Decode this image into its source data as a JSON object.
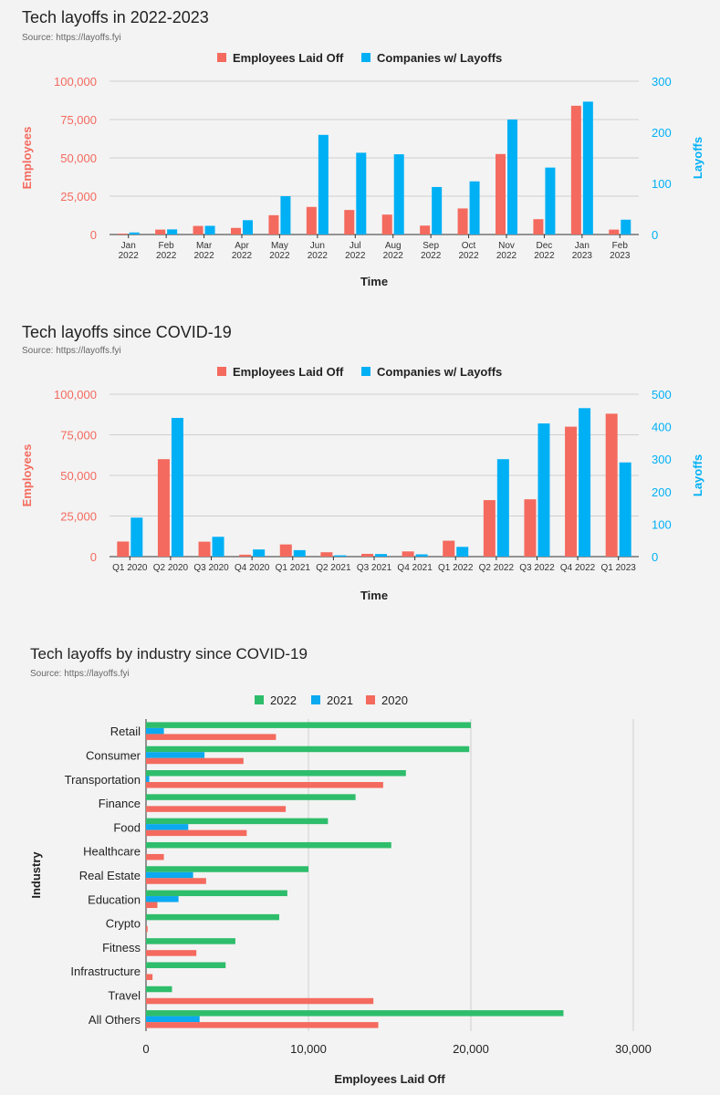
{
  "colors": {
    "laid_off": "#f46a5e",
    "companies": "#00b0f5",
    "y2022": "#2ebd6b",
    "y2021": "#0aa9f0",
    "y2020": "#f46a5e"
  },
  "chart_data": [
    {
      "type": "bar",
      "title": "Tech layoffs in 2022-2023",
      "source": "Source: https://layoffs.fyi",
      "categories": [
        [
          "Jan",
          "2022"
        ],
        [
          "Feb",
          "2022"
        ],
        [
          "Mar",
          "2022"
        ],
        [
          "Apr",
          "2022"
        ],
        [
          "May",
          "2022"
        ],
        [
          "Jun",
          "2022"
        ],
        [
          "Jul",
          "2022"
        ],
        [
          "Aug",
          "2022"
        ],
        [
          "Sep",
          "2022"
        ],
        [
          "Oct",
          "2022"
        ],
        [
          "Nov",
          "2022"
        ],
        [
          "Dec",
          "2022"
        ],
        [
          "Jan",
          "2023"
        ],
        [
          "Feb",
          "2023"
        ]
      ],
      "series": [
        {
          "name": "Employees Laid Off",
          "axis": "left",
          "values": [
            600,
            3200,
            5600,
            4300,
            12600,
            18000,
            16000,
            13000,
            5800,
            17000,
            52500,
            10000,
            84000,
            3200
          ]
        },
        {
          "name": "Companies w/ Layoffs",
          "axis": "right",
          "values": [
            4,
            10,
            17,
            28,
            75,
            195,
            160,
            157,
            93,
            104,
            225,
            131,
            260,
            29
          ]
        }
      ],
      "xlabel": "Time",
      "ylabel_left": "Employees",
      "ylabel_right": "Layoffs",
      "ylim_left": [
        0,
        100000
      ],
      "ylim_right": [
        0,
        300
      ],
      "yticks_left": [
        "0",
        "25,000",
        "50,000",
        "75,000",
        "100,000"
      ],
      "yticks_right": [
        "0",
        "100",
        "200",
        "300"
      ],
      "legend": "top"
    },
    {
      "type": "bar",
      "title": "Tech layoffs since COVID-19",
      "source": "Source: https://layoffs.fyi",
      "categories": [
        [
          "Q1 2020"
        ],
        [
          "Q2 2020"
        ],
        [
          "Q3 2020"
        ],
        [
          "Q4 2020"
        ],
        [
          "Q1 2021"
        ],
        [
          "Q2 2021"
        ],
        [
          "Q3 2021"
        ],
        [
          "Q4 2021"
        ],
        [
          "Q1 2022"
        ],
        [
          "Q2 2022"
        ],
        [
          "Q3 2022"
        ],
        [
          "Q4 2022"
        ],
        [
          "Q1 2023"
        ]
      ],
      "series": [
        {
          "name": "Employees Laid Off",
          "axis": "left",
          "values": [
            9300,
            60000,
            9200,
            1200,
            7500,
            2700,
            1700,
            3200,
            9800,
            34800,
            35300,
            80000,
            88000
          ]
        },
        {
          "name": "Companies w/ Layoffs",
          "axis": "right",
          "values": [
            120,
            427,
            61,
            22,
            20,
            4,
            8,
            7,
            30,
            300,
            410,
            457,
            290
          ]
        }
      ],
      "xlabel": "Time",
      "ylabel_left": "Employees",
      "ylabel_right": "Layoffs",
      "ylim_left": [
        0,
        100000
      ],
      "ylim_right": [
        0,
        500
      ],
      "yticks_left": [
        "0",
        "25,000",
        "50,000",
        "75,000",
        "100,000"
      ],
      "yticks_right": [
        "0",
        "100",
        "200",
        "300",
        "400",
        "500"
      ],
      "legend": "top"
    },
    {
      "type": "bar",
      "orientation": "horizontal",
      "title": "Tech layoffs by industry since COVID-19",
      "source": "Source: https://layoffs.fyi",
      "categories": [
        "Retail",
        "Consumer",
        "Transportation",
        "Finance",
        "Food",
        "Healthcare",
        "Real Estate",
        "Education",
        "Crypto",
        "Fitness",
        "Infrastructure",
        "Travel",
        "All Others"
      ],
      "series": [
        {
          "name": "2022",
          "values": [
            20000,
            19900,
            16000,
            12900,
            11200,
            15100,
            10000,
            8700,
            8200,
            5500,
            4900,
            1600,
            25700
          ]
        },
        {
          "name": "2021",
          "values": [
            1100,
            3600,
            200,
            0,
            2600,
            0,
            2900,
            2000,
            0,
            0,
            0,
            0,
            3300
          ]
        },
        {
          "name": "2020",
          "values": [
            8000,
            6000,
            14600,
            8600,
            6200,
            1100,
            3700,
            700,
            100,
            3100,
            400,
            14000,
            14300
          ]
        }
      ],
      "xlabel": "Employees Laid Off",
      "ylabel": "Industry",
      "xlim": [
        0,
        30000
      ],
      "xticks": [
        "0",
        "10,000",
        "20,000",
        "30,000"
      ],
      "legend": "top"
    }
  ]
}
